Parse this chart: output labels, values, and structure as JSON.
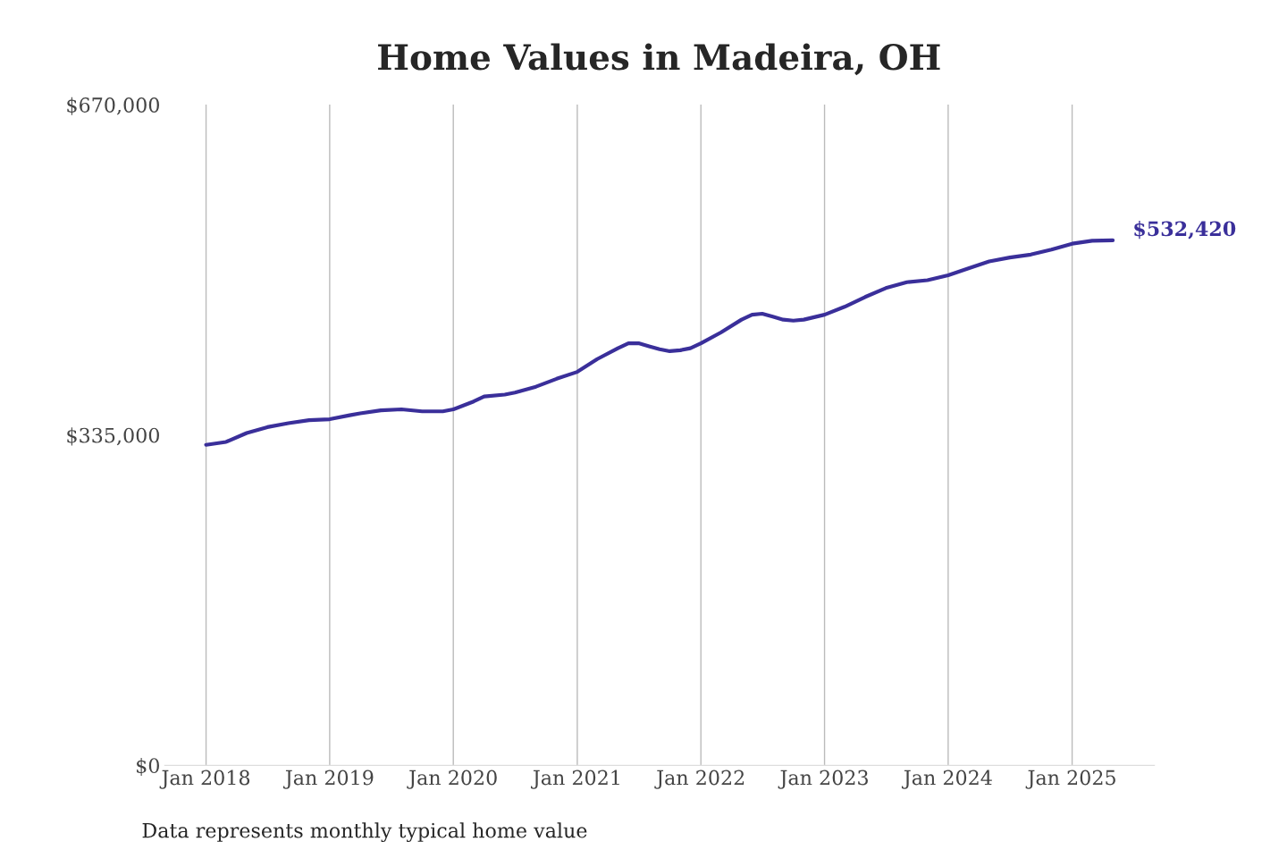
{
  "chart_data": {
    "type": "line",
    "title": "Home Values in Madeira, OH",
    "x": [
      "2018-01",
      "2018-03",
      "2018-05",
      "2018-07",
      "2018-09",
      "2018-11",
      "2019-01",
      "2019-03",
      "2019-04",
      "2019-06",
      "2019-08",
      "2019-10",
      "2019-12",
      "2020-01",
      "2020-03",
      "2020-04",
      "2020-06",
      "2020-07",
      "2020-09",
      "2020-11",
      "2021-01",
      "2021-03",
      "2021-05",
      "2021-06",
      "2021-07",
      "2021-08",
      "2021-09",
      "2021-10",
      "2021-11",
      "2021-12",
      "2022-01",
      "2022-03",
      "2022-05",
      "2022-06",
      "2022-07",
      "2022-08",
      "2022-09",
      "2022-10",
      "2022-11",
      "2023-01",
      "2023-03",
      "2023-05",
      "2023-07",
      "2023-09",
      "2023-11",
      "2024-01",
      "2024-03",
      "2024-05",
      "2024-07",
      "2024-09",
      "2024-11",
      "2025-01",
      "2025-03",
      "2025-05"
    ],
    "series": [
      {
        "color": "#3a2f9a",
        "values": [
          325000,
          328000,
          337000,
          343000,
          347000,
          350000,
          351000,
          355000,
          357000,
          360000,
          361000,
          359000,
          359000,
          361000,
          369000,
          374000,
          376000,
          378000,
          384000,
          392000,
          399000,
          412000,
          423000,
          428000,
          428000,
          425000,
          422000,
          420000,
          421000,
          423000,
          428000,
          439000,
          452000,
          457000,
          458000,
          455000,
          452000,
          451000,
          452000,
          457000,
          465000,
          475000,
          484000,
          490000,
          492000,
          497000,
          504000,
          511000,
          515000,
          518000,
          523000,
          529000,
          532000,
          532420
        ]
      }
    ],
    "xlim": [
      "2017-09",
      "2025-09"
    ],
    "xticks": [
      {
        "value": "2018-01",
        "label": "Jan 2018"
      },
      {
        "value": "2019-01",
        "label": "Jan 2019"
      },
      {
        "value": "2020-01",
        "label": "Jan 2020"
      },
      {
        "value": "2021-01",
        "label": "Jan 2021"
      },
      {
        "value": "2022-01",
        "label": "Jan 2022"
      },
      {
        "value": "2023-01",
        "label": "Jan 2023"
      },
      {
        "value": "2024-01",
        "label": "Jan 2024"
      },
      {
        "value": "2025-01",
        "label": "Jan 2025"
      }
    ],
    "ylim": [
      0,
      670000
    ],
    "yticks": [
      {
        "value": 0,
        "label": "$0"
      },
      {
        "value": 335000,
        "label": "$335,000"
      },
      {
        "value": 670000,
        "label": "$670,000"
      }
    ],
    "grid": "x",
    "legend": false,
    "line_style": "solid",
    "marker": "none",
    "annotations": [
      {
        "text": "$532,420",
        "x": "2025-05",
        "y": 532420
      },
      "Data represents monthly typical home value"
    ]
  }
}
